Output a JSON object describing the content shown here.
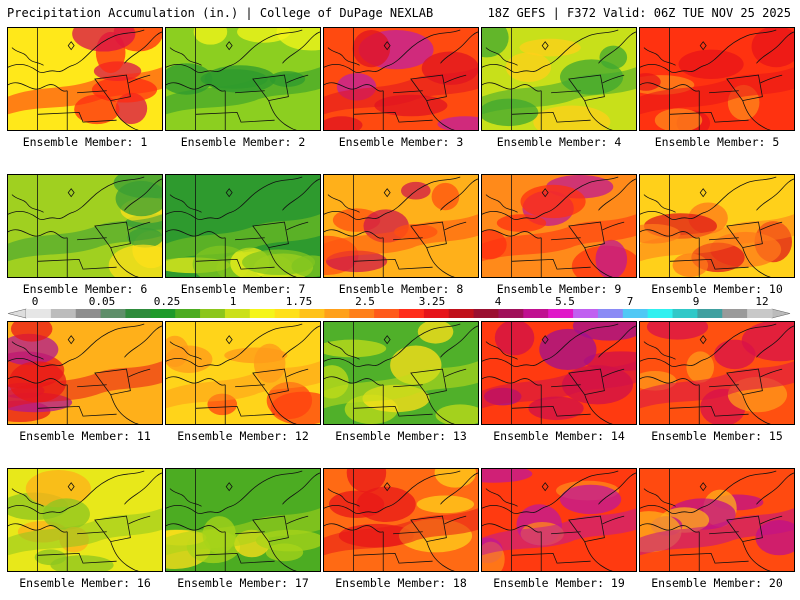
{
  "header": {
    "left": "Precipitation Accumulation (in.) | College of DuPage NEXLAB",
    "right": "18Z GEFS | F372 Valid: 06Z TUE NOV 25 2025"
  },
  "colorbar": {
    "labels": [
      "0",
      "0.05",
      "0.25",
      "1",
      "1.75",
      "2.5",
      "3.25",
      "4",
      "5.5",
      "7",
      "9",
      "12"
    ],
    "colors": [
      "#e6e6e6",
      "#bcbcbc",
      "#8e8e8e",
      "#5f8f6a",
      "#2e8b3c",
      "#1f9a2a",
      "#4cac22",
      "#8cc61c",
      "#cbe01a",
      "#f5f51a",
      "#ffe01a",
      "#ffc21a",
      "#ffa01a",
      "#ff7f1a",
      "#ff5a1a",
      "#ff2d1a",
      "#e6141a",
      "#c0101a",
      "#9a0f30",
      "#a0105a",
      "#c01090",
      "#e018c8",
      "#c060f0",
      "#8a8af5",
      "#50c8f5",
      "#30f0f0",
      "#30c8c8",
      "#40a0a0",
      "#9a9a9a",
      "#c8c8c8"
    ]
  },
  "members": [
    {
      "label": "Ensemble Member: 1",
      "palette": [
        "#ffe81a",
        "#ff2a10",
        "#d8104a"
      ]
    },
    {
      "label": "Ensemble Member: 2",
      "palette": [
        "#8ccf20",
        "#2e9a2e",
        "#f5f51a"
      ]
    },
    {
      "label": "Ensemble Member: 3",
      "palette": [
        "#ff4a10",
        "#e01420",
        "#c020a0"
      ]
    },
    {
      "label": "Ensemble Member: 4",
      "palette": [
        "#c8e01a",
        "#40a830",
        "#ffd01a"
      ]
    },
    {
      "label": "Ensemble Member: 5",
      "palette": [
        "#ff3210",
        "#e81418",
        "#ff8a1a"
      ]
    },
    {
      "label": "Ensemble Member: 6",
      "palette": [
        "#a0d020",
        "#3a9e34",
        "#ffe01a"
      ]
    },
    {
      "label": "Ensemble Member: 7",
      "palette": [
        "#2e9a2e",
        "#80c420",
        "#f0f01a"
      ]
    },
    {
      "label": "Ensemble Member: 8",
      "palette": [
        "#ffb01a",
        "#ff5010",
        "#d01848"
      ]
    },
    {
      "label": "Ensemble Member: 9",
      "palette": [
        "#ff8a1a",
        "#ff3010",
        "#c01890"
      ]
    },
    {
      "label": "Ensemble Member: 10",
      "palette": [
        "#ffd01a",
        "#ff7a1a",
        "#e01818"
      ]
    },
    {
      "label": "Ensemble Member: 11",
      "palette": [
        "#ffb01a",
        "#e81818",
        "#b01890"
      ]
    },
    {
      "label": "Ensemble Member: 12",
      "palette": [
        "#ffd41a",
        "#ff9a1a",
        "#ff4010"
      ]
    },
    {
      "label": "Ensemble Member: 13",
      "palette": [
        "#50b02a",
        "#c0dc1a",
        "#ffe01a"
      ]
    },
    {
      "label": "Ensemble Member: 14",
      "palette": [
        "#ff3a10",
        "#d0104a",
        "#a01090"
      ]
    },
    {
      "label": "Ensemble Member: 15",
      "palette": [
        "#ff5010",
        "#d8104a",
        "#ff9a1a"
      ]
    },
    {
      "label": "Ensemble Member: 16",
      "palette": [
        "#e8e81a",
        "#8cc620",
        "#ffb01a"
      ]
    },
    {
      "label": "Ensemble Member: 17",
      "palette": [
        "#4cac22",
        "#a8d41a",
        "#ffe01a"
      ]
    },
    {
      "label": "Ensemble Member: 18",
      "palette": [
        "#ff6a14",
        "#e81818",
        "#ffd01a"
      ]
    },
    {
      "label": "Ensemble Member: 19",
      "palette": [
        "#ff3a10",
        "#c01898",
        "#ff8a1a"
      ]
    },
    {
      "label": "Ensemble Member: 20",
      "palette": [
        "#ff4a10",
        "#c0108a",
        "#ffb01a"
      ]
    }
  ]
}
